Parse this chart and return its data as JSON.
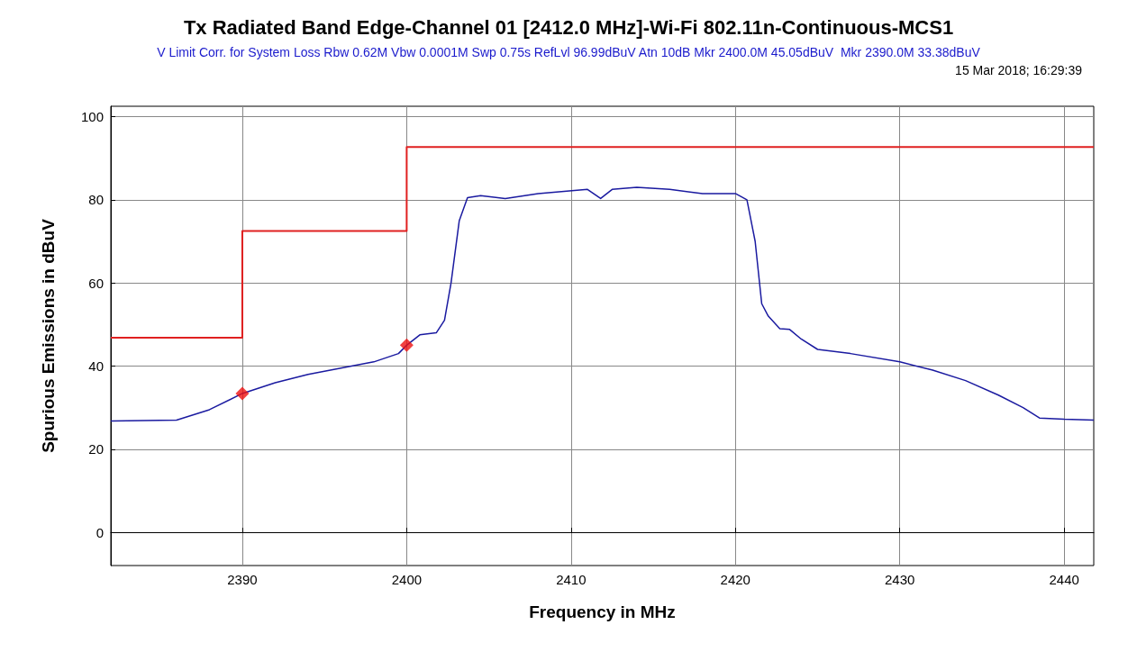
{
  "chart_data": {
    "type": "line",
    "title": "Tx Radiated Band Edge-Channel 01 [2412.0 MHz]-Wi-Fi 802.11n-Continuous-MCS1",
    "subtitle": "V Limit Corr. for System Loss Rbw 0.62M Vbw 0.0001M Swp 0.75s RefLvl 96.99dBuV Atn 10dB Mkr 2400.0M 45.05dBuV  Mkr 2390.0M 33.38dBuV",
    "annotations": [
      "15 Mar 2018; 16:29:39"
    ],
    "xlabel": "Frequency in MHz",
    "ylabel": "Spurious Emissions in dBuV",
    "xlim": [
      2382,
      2441.8
    ],
    "xticks": [
      2390,
      2400,
      2410,
      2420,
      2430,
      2440
    ],
    "ylim": [
      -8,
      102.5
    ],
    "yticks": [
      0,
      20,
      40,
      60,
      80,
      100
    ],
    "grid": true,
    "series": [
      {
        "color": "#1a1aa0",
        "marker": "none",
        "x": [
          2382,
          2386,
          2388,
          2390,
          2392,
          2394,
          2396,
          2398,
          2399.5,
          2400,
          2400.8,
          2401.8,
          2402.3,
          2402.7,
          2403.2,
          2403.7,
          2404.5,
          2406,
          2408,
          2411,
          2411.8,
          2412.5,
          2414,
          2416,
          2418,
          2420,
          2420.7,
          2421.2,
          2421.6,
          2422,
          2422.7,
          2423.3,
          2424,
          2425,
          2427,
          2430,
          2432,
          2434,
          2436,
          2437.5,
          2438.5,
          2440,
          2441.8
        ],
        "values": [
          26.8,
          27,
          29.5,
          33.4,
          36,
          38,
          39.5,
          41,
          43,
          45,
          47.5,
          48,
          51,
          60,
          75,
          80.5,
          81,
          80.3,
          81.5,
          82.5,
          80.3,
          82.5,
          83,
          82.5,
          81.5,
          81.5,
          80,
          70,
          55,
          52,
          49,
          48.8,
          46.5,
          44,
          43,
          41,
          39,
          36.5,
          33,
          30,
          27.5,
          27.2,
          27
        ]
      },
      {
        "type": "step",
        "color": "#e02020",
        "marker": "none",
        "x": [
          2382,
          2390,
          2400,
          2441.8
        ],
        "values": [
          46.8,
          72.5,
          92.7,
          92.7
        ]
      },
      {
        "type": "scatter",
        "color": "#ee1111",
        "marker": "diamond",
        "x": [
          2390,
          2400
        ],
        "values": [
          33.38,
          45.05
        ]
      }
    ]
  }
}
